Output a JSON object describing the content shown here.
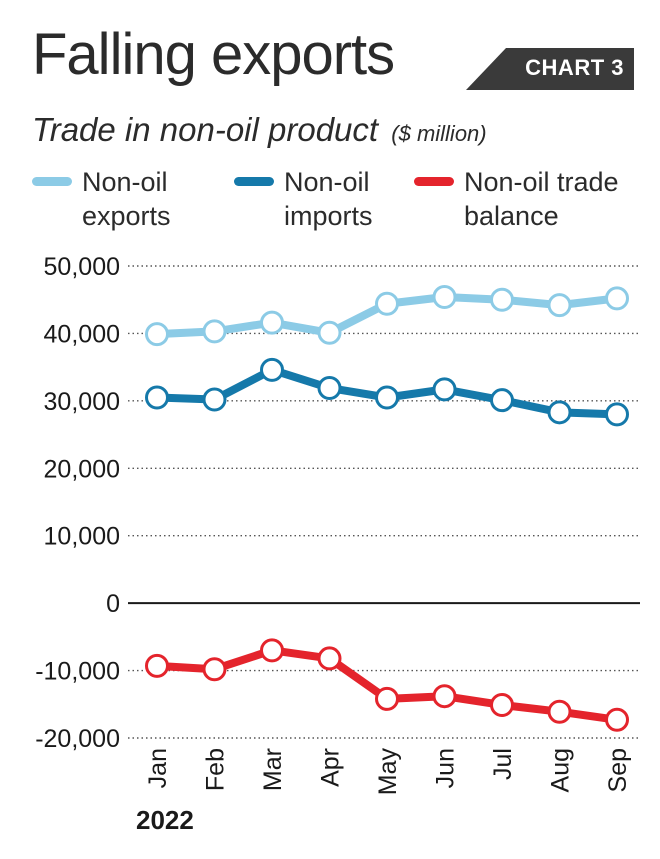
{
  "header": {
    "title": "Falling exports",
    "badge": "CHART 3",
    "subtitle": "Trade in non-oil product",
    "unit": "($ million)"
  },
  "footer": {
    "year": "2022"
  },
  "colors": {
    "exports": "#8ccbe6",
    "imports": "#1579aa",
    "balance": "#e4242c",
    "badge": "#3a3a3a",
    "text": "#2b2b2b"
  },
  "chart_data": {
    "type": "line",
    "categories": [
      "Jan",
      "Feb",
      "Mar",
      "Apr",
      "May",
      "Jun",
      "Jul",
      "Aug",
      "Sep"
    ],
    "series": [
      {
        "name": "Non-oil exports",
        "key": "exports",
        "values": [
          39900,
          40300,
          41600,
          40100,
          44400,
          45400,
          45000,
          44200,
          45200
        ]
      },
      {
        "name": "Non-oil imports",
        "key": "imports",
        "values": [
          30500,
          30200,
          34600,
          31900,
          30500,
          31700,
          30100,
          28300,
          28000
        ]
      },
      {
        "name": "Non-oil trade balance",
        "key": "balance",
        "values": [
          -9300,
          -9800,
          -7000,
          -8200,
          -14200,
          -13800,
          -15100,
          -16100,
          -17300
        ]
      }
    ],
    "legend": [
      {
        "key": "exports",
        "line1": "Non-oil",
        "line2": "exports"
      },
      {
        "key": "imports",
        "line1": "Non-oil",
        "line2": "imports"
      },
      {
        "key": "balance",
        "line1": "Non-oil trade",
        "line2": "balance"
      }
    ],
    "yticks": [
      50000,
      40000,
      30000,
      20000,
      10000,
      0,
      -10000,
      -20000
    ],
    "ytick_labels": [
      "50,000",
      "40,000",
      "30,000",
      "20,000",
      "10,000",
      "0",
      "-10,000",
      "-20,000"
    ],
    "ylim": [
      -20000,
      50000
    ],
    "grid": "dotted horizontal",
    "legend_placement": "top"
  }
}
